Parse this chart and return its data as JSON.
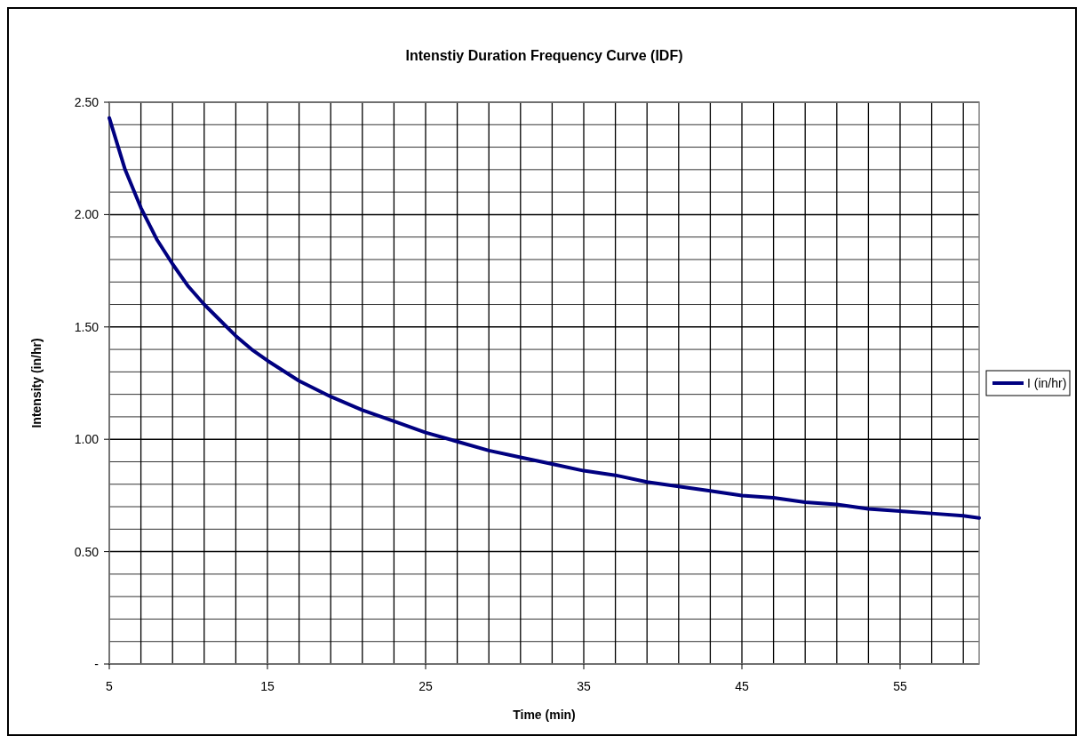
{
  "chart_data": {
    "type": "line",
    "title": "Intenstiy Duration Frequency Curve (IDF)",
    "xlabel": "Time (min)",
    "ylabel": "Intensity (in/hr)",
    "x": [
      5,
      6,
      7,
      8,
      9,
      10,
      11,
      12,
      13,
      14,
      15,
      17,
      19,
      21,
      23,
      25,
      27,
      29,
      31,
      33,
      35,
      37,
      39,
      41,
      43,
      45,
      47,
      49,
      51,
      53,
      55,
      57,
      59,
      60
    ],
    "series": [
      {
        "name": "I (in/hr)",
        "color": "#000080",
        "values": [
          2.43,
          2.2,
          2.03,
          1.89,
          1.78,
          1.68,
          1.6,
          1.53,
          1.46,
          1.4,
          1.35,
          1.26,
          1.19,
          1.13,
          1.08,
          1.03,
          0.99,
          0.95,
          0.92,
          0.89,
          0.86,
          0.84,
          0.81,
          0.79,
          0.77,
          0.75,
          0.74,
          0.72,
          0.71,
          0.69,
          0.68,
          0.67,
          0.66,
          0.65
        ]
      }
    ],
    "xlim": [
      5,
      60
    ],
    "xticks": [
      5,
      {
        "value": 7,
        "label": null
      },
      {
        "value": 9,
        "label": null
      },
      {
        "value": 11,
        "label": null
      },
      {
        "value": 13,
        "label": null
      },
      15,
      {
        "value": 17,
        "label": null
      },
      {
        "value": 19,
        "label": null
      },
      {
        "value": 21,
        "label": null
      },
      {
        "value": 23,
        "label": null
      },
      25,
      {
        "value": 27,
        "label": null
      },
      {
        "value": 29,
        "label": null
      },
      {
        "value": 31,
        "label": null
      },
      {
        "value": 33,
        "label": null
      },
      35,
      {
        "value": 37,
        "label": null
      },
      {
        "value": 39,
        "label": null
      },
      {
        "value": 41,
        "label": null
      },
      {
        "value": 43,
        "label": null
      },
      45,
      {
        "value": 47,
        "label": null
      },
      {
        "value": 49,
        "label": null
      },
      {
        "value": 51,
        "label": null
      },
      {
        "value": 53,
        "label": null
      },
      55,
      {
        "value": 57,
        "label": null
      },
      {
        "value": 59,
        "label": null
      }
    ],
    "ylim": [
      0,
      2.5
    ],
    "yticks": [
      {
        "value": 0,
        "label": "-"
      },
      {
        "value": 0.1,
        "label": null
      },
      {
        "value": 0.2,
        "label": null
      },
      {
        "value": 0.3,
        "label": null
      },
      {
        "value": 0.4,
        "label": null
      },
      {
        "value": 0.5,
        "label": "0.50"
      },
      {
        "value": 0.6,
        "label": null
      },
      {
        "value": 0.7,
        "label": null
      },
      {
        "value": 0.8,
        "label": null
      },
      {
        "value": 0.9,
        "label": null
      },
      {
        "value": 1,
        "label": "1.00"
      },
      {
        "value": 1.1,
        "label": null
      },
      {
        "value": 1.2,
        "label": null
      },
      {
        "value": 1.3,
        "label": null
      },
      {
        "value": 1.4,
        "label": null
      },
      {
        "value": 1.5,
        "label": "1.50"
      },
      {
        "value": 1.6,
        "label": null
      },
      {
        "value": 1.7,
        "label": null
      },
      {
        "value": 1.8,
        "label": null
      },
      {
        "value": 1.9,
        "label": null
      },
      {
        "value": 2,
        "label": "2.00"
      },
      {
        "value": 2.1,
        "label": null
      },
      {
        "value": 2.2,
        "label": null
      },
      {
        "value": 2.3,
        "label": null
      },
      {
        "value": 2.4,
        "label": null
      },
      {
        "value": 2.5,
        "label": "2.50"
      }
    ],
    "grid": true,
    "legend": "right",
    "marker": "none",
    "line_style": "solid"
  }
}
